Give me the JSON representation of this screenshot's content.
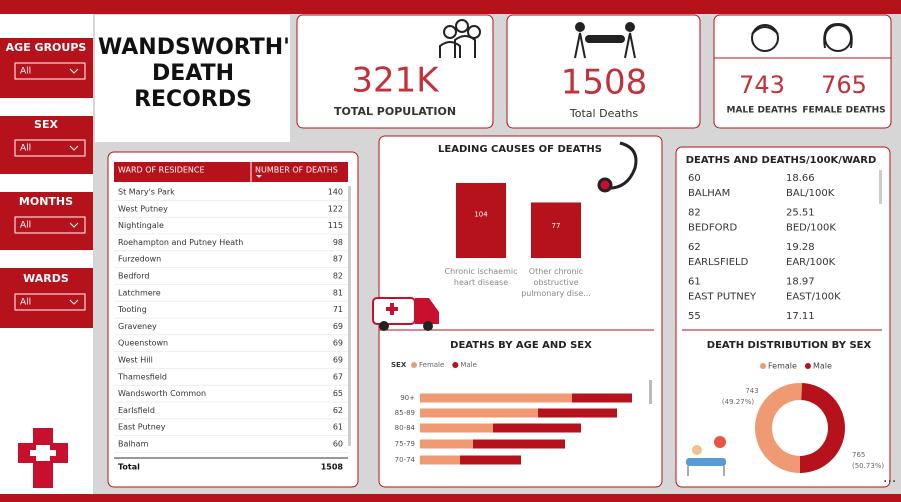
{
  "filters": [
    {
      "label": "AGE GROUPS",
      "value": "All"
    },
    {
      "label": "SEX",
      "value": "All"
    },
    {
      "label": "MONTHS",
      "value": "All"
    },
    {
      "label": "WARDS",
      "value": "All"
    }
  ],
  "title": "WANDSWORTH'S DEATH RECORDS",
  "kpis": {
    "population": {
      "value": "321K",
      "label": "TOTAL POPULATION"
    },
    "deaths": {
      "value": 1508,
      "label": "Total Deaths"
    },
    "male": {
      "value": 743,
      "label": "MALE DEATHS"
    },
    "female": {
      "value": 765,
      "label": "FEMALE DEATHS"
    }
  },
  "ward_table": {
    "headers": [
      "WARD OF RESIDENCE",
      "NUMBER OF DEATHS"
    ],
    "rows": [
      [
        "St Mary's Park",
        140
      ],
      [
        "West Putney",
        122
      ],
      [
        "Nightingale",
        115
      ],
      [
        "Roehampton and Putney Heath",
        98
      ],
      [
        "Furzedown",
        87
      ],
      [
        "Bedford",
        82
      ],
      [
        "Latchmere",
        81
      ],
      [
        "Tooting",
        71
      ],
      [
        "Graveney",
        69
      ],
      [
        "Queenstown",
        69
      ],
      [
        "West Hill",
        69
      ],
      [
        "Thamesfield",
        67
      ],
      [
        "Wandsworth Common",
        65
      ],
      [
        "Earlsfield",
        62
      ],
      [
        "East Putney",
        61
      ],
      [
        "Balham",
        60
      ]
    ],
    "total": [
      "Total",
      1508
    ]
  },
  "ward_rates": {
    "title": "DEATHS AND DEATHS/100K/WARD",
    "rows": [
      {
        "deaths": 60,
        "ward": "BALHAM",
        "rate": 18.66,
        "rate_label": "BAL/100K"
      },
      {
        "deaths": 82,
        "ward": "BEDFORD",
        "rate": 25.51,
        "rate_label": "BED/100K"
      },
      {
        "deaths": 62,
        "ward": "EARLSFIELD",
        "rate": 19.28,
        "rate_label": "EAR/100K"
      },
      {
        "deaths": 61,
        "ward": "EAST PUTNEY",
        "rate": 18.97,
        "rate_label": "EAST/100K"
      },
      {
        "deaths": 55,
        "rate": 17.11
      }
    ]
  },
  "chart_data": [
    {
      "type": "bar",
      "title": "LEADING CAUSES OF DEATHS",
      "categories": [
        "Chronic ischaemic heart disease",
        "Other chronic obstructive pulmonary dise..."
      ],
      "values": [
        104,
        77
      ],
      "color": "#b5121b"
    },
    {
      "type": "hbar",
      "title": "DEATHS BY AGE AND SEX",
      "legend_title": "SEX",
      "categories": [
        "90+",
        "85-89",
        "80-84",
        "75-79",
        "70-74"
      ],
      "series": [
        {
          "name": "Female",
          "color": "#ef9a72",
          "values": [
            152,
            118,
            73,
            53,
            40
          ]
        },
        {
          "name": "Male",
          "color": "#b5121b",
          "values": [
            60,
            79,
            88,
            92,
            61
          ]
        }
      ]
    },
    {
      "type": "donut",
      "title": "DEATH DISTRIBUTION BY SEX",
      "categories": [
        "Female",
        "Male"
      ],
      "colors": [
        "#ef9a72",
        "#b5121b"
      ],
      "values": [
        765,
        743
      ],
      "percents": [
        50.73,
        49.27
      ],
      "percent_labels": [
        "(50.73%)",
        "(49.27%)"
      ]
    }
  ]
}
